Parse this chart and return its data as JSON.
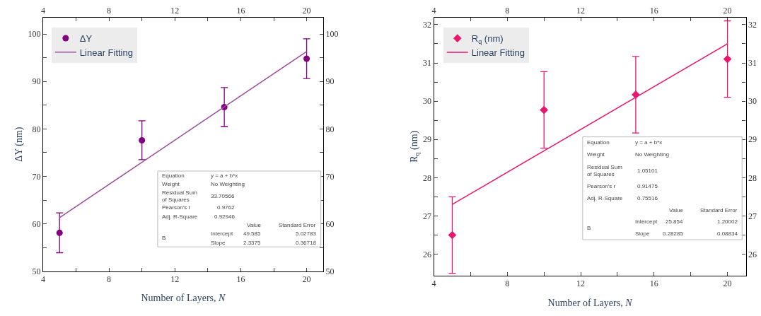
{
  "chart_data": [
    {
      "type": "scatter",
      "xlabel": "Number of Layers, N",
      "ylabel": "ΔY (nm)",
      "legend": "top left",
      "xlim": [
        4,
        21
      ],
      "xticks": [
        4,
        {
          "value": 6,
          "label": null
        },
        8,
        {
          "value": 10,
          "label": null
        },
        12,
        {
          "value": 14,
          "label": null
        },
        16,
        {
          "value": 18,
          "label": null
        },
        20
      ],
      "x2lim": [
        4,
        21
      ],
      "x2ticks": [
        4,
        {
          "value": 6,
          "label": null
        },
        8,
        {
          "value": 10,
          "label": null
        },
        12,
        {
          "value": 14,
          "label": null
        },
        16,
        {
          "value": 18,
          "label": null
        },
        20
      ],
      "ylim": [
        50,
        103.5
      ],
      "yticks": [
        50,
        {
          "value": 55,
          "label": null
        },
        60,
        {
          "value": 65,
          "label": null
        },
        70,
        {
          "value": 75,
          "label": null
        },
        80,
        {
          "value": 85,
          "label": null
        },
        90,
        {
          "value": 95,
          "label": null
        },
        100
      ],
      "y2lim": [
        50,
        103.5
      ],
      "y2ticks": [
        50,
        {
          "value": 55,
          "label": null
        },
        60,
        {
          "value": 65,
          "label": null
        },
        70,
        {
          "value": 75,
          "label": null
        },
        80,
        {
          "value": 85,
          "label": null
        },
        90,
        {
          "value": 95,
          "label": null
        },
        100
      ],
      "series": [
        {
          "name": "ΔY",
          "marker": "circle",
          "color": "#800080",
          "x": [
            5,
            10,
            15,
            20
          ],
          "values": [
            58.1,
            77.6,
            84.6,
            94.8
          ],
          "errors": [
            4.2,
            4.1,
            4.1,
            4.2
          ]
        },
        {
          "name": "Linear Fitting",
          "type": "line",
          "marker": "none",
          "color": "#9b4a9b",
          "x": [
            5,
            20
          ],
          "values": [
            61.3,
            96.3
          ]
        }
      ],
      "annotations": [
        "Equation",
        "y = a + b*x",
        "Weight",
        "No Weighting",
        "Residual Sum of Squares",
        "33.70566",
        "Pearson's r",
        "0.9762",
        "Adj. R-Square",
        "0.92946",
        "Value",
        "Standard Error",
        "B",
        "Intercept",
        "49.585",
        "5.02783",
        "Slope",
        "2.3375",
        "0.36718"
      ]
    },
    {
      "type": "scatter",
      "xlabel": "Number of Layers, N",
      "ylabel": "R$_{q}$ (nm)",
      "legend": "top left",
      "xlim": [
        4,
        21
      ],
      "xticks": [
        4,
        {
          "value": 6,
          "label": null
        },
        8,
        {
          "value": 10,
          "label": null
        },
        12,
        {
          "value": 14,
          "label": null
        },
        16,
        {
          "value": 18,
          "label": null
        },
        20
      ],
      "x2lim": [
        4,
        21
      ],
      "x2ticks": [
        4,
        {
          "value": 6,
          "label": null
        },
        8,
        {
          "value": 10,
          "label": null
        },
        12,
        {
          "value": 14,
          "label": null
        },
        16,
        {
          "value": 18,
          "label": null
        },
        20
      ],
      "ylim": [
        25.44,
        32.19
      ],
      "yticks": [
        26,
        {
          "value": 26.5,
          "label": null
        },
        27,
        {
          "value": 27.5,
          "label": null
        },
        28,
        {
          "value": 28.5,
          "label": null
        },
        29,
        {
          "value": 29.5,
          "label": null
        },
        30,
        {
          "value": 30.5,
          "label": null
        },
        31,
        {
          "value": 31.5,
          "label": null
        },
        32
      ],
      "y2lim": [
        25.44,
        32.19
      ],
      "y2ticks": [
        26,
        {
          "value": 26.5,
          "label": null
        },
        27,
        {
          "value": 27.5,
          "label": null
        },
        28,
        {
          "value": 28.5,
          "label": null
        },
        29,
        {
          "value": 29.5,
          "label": null
        },
        30,
        {
          "value": 30.5,
          "label": null
        },
        31,
        {
          "value": 31.5,
          "label": null
        },
        32
      ],
      "series": [
        {
          "name": "R$_{q}$ (nm)",
          "marker": "diamond",
          "color": "#e8176f",
          "x": [
            5,
            10,
            15,
            20
          ],
          "values": [
            26.5,
            29.77,
            30.17,
            31.1
          ],
          "errors": [
            1,
            1,
            1,
            1
          ]
        },
        {
          "name": "Linear Fitting",
          "type": "line",
          "marker": "none",
          "color": "#e8176f",
          "x": [
            5,
            20
          ],
          "values": [
            27.3,
            31.5
          ]
        }
      ],
      "annotations": [
        "Equation",
        "y = a + b*x",
        "Weight",
        "No Weighting",
        "Residual Sum of Squares",
        "1.05101",
        "Pearson's r",
        "0.91475",
        "Adj. R-Square",
        "0.75516",
        "Value",
        "Standard Error",
        "B",
        "Intercept",
        "25.854",
        "1.20002",
        "Slope",
        "0.28285",
        "0.08834"
      ]
    }
  ]
}
